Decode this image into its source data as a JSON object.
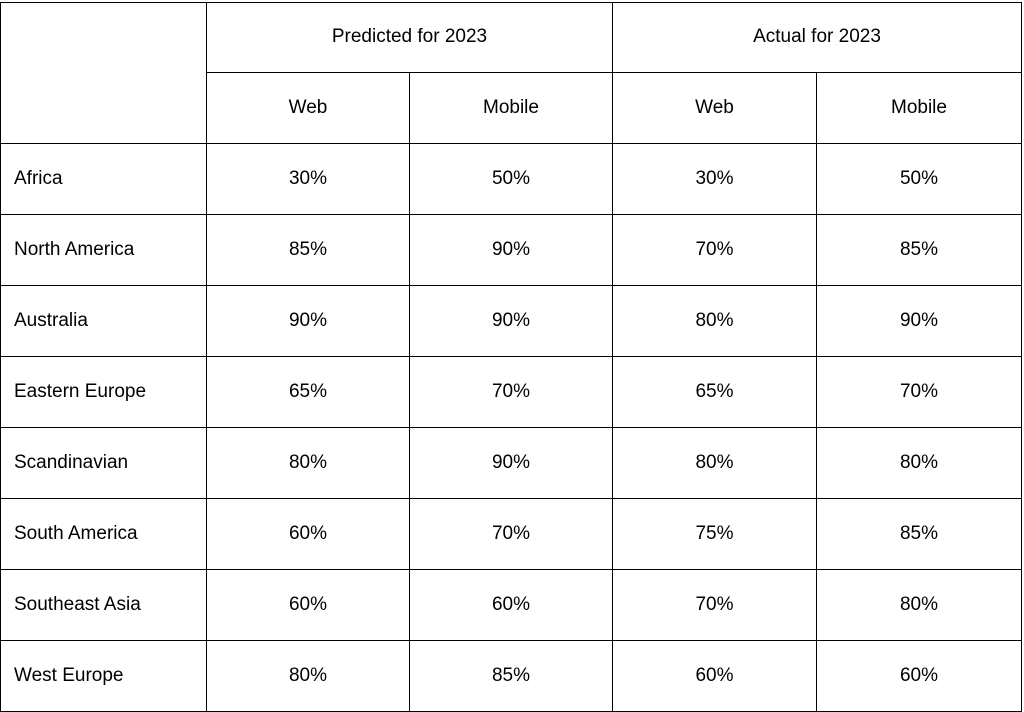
{
  "header": {
    "groups": [
      "Predicted for 2023",
      "Actual for 2023"
    ],
    "subcolumns": [
      "Web",
      "Mobile",
      "Web",
      "Mobile"
    ]
  },
  "table": {
    "rows": [
      [
        "Africa",
        "30%",
        "50%",
        "30%",
        "50%"
      ],
      [
        "North America",
        "85%",
        "90%",
        "70%",
        "85%"
      ],
      [
        "Australia",
        "90%",
        "90%",
        "80%",
        "90%"
      ],
      [
        "Eastern Europe",
        "65%",
        "70%",
        "65%",
        "70%"
      ],
      [
        "Scandinavian",
        "80%",
        "90%",
        "80%",
        "80%"
      ],
      [
        "South America",
        "60%",
        "70%",
        "75%",
        "85%"
      ],
      [
        "Southeast Asia",
        "60%",
        "60%",
        "70%",
        "80%"
      ],
      [
        "West Europe",
        "80%",
        "85%",
        "60%",
        "60%"
      ]
    ]
  }
}
